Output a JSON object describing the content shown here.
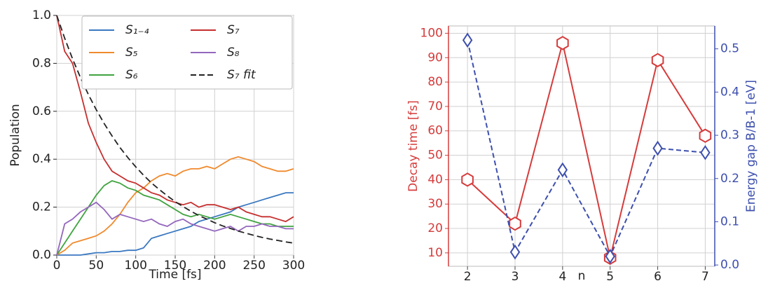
{
  "chart_data": [
    {
      "type": "line",
      "x_label": "Time [fs]",
      "y_label": "Population",
      "x": [
        0,
        10,
        20,
        30,
        40,
        50,
        60,
        70,
        80,
        90,
        100,
        110,
        120,
        130,
        140,
        150,
        160,
        170,
        180,
        190,
        200,
        210,
        220,
        230,
        240,
        250,
        260,
        270,
        280,
        290,
        300
      ],
      "series": [
        {
          "name": "S₁₋₄",
          "color": "#3a78c0",
          "values": [
            0,
            0,
            0,
            0,
            0.005,
            0.01,
            0.01,
            0.015,
            0.015,
            0.02,
            0.02,
            0.03,
            0.07,
            0.08,
            0.09,
            0.1,
            0.11,
            0.12,
            0.14,
            0.15,
            0.16,
            0.17,
            0.18,
            0.2,
            0.21,
            0.22,
            0.23,
            0.24,
            0.25,
            0.26,
            0.26
          ]
        },
        {
          "name": "S₅",
          "color": "#f08a2c",
          "values": [
            0,
            0.02,
            0.05,
            0.06,
            0.07,
            0.08,
            0.1,
            0.13,
            0.17,
            0.22,
            0.26,
            0.28,
            0.31,
            0.33,
            0.34,
            0.33,
            0.35,
            0.36,
            0.36,
            0.37,
            0.36,
            0.38,
            0.4,
            0.41,
            0.4,
            0.39,
            0.37,
            0.36,
            0.35,
            0.35,
            0.36
          ]
        },
        {
          "name": "S₆",
          "color": "#3fa33f",
          "values": [
            0,
            0.05,
            0.1,
            0.15,
            0.2,
            0.25,
            0.29,
            0.31,
            0.3,
            0.28,
            0.27,
            0.25,
            0.24,
            0.23,
            0.21,
            0.19,
            0.17,
            0.16,
            0.17,
            0.16,
            0.15,
            0.16,
            0.17,
            0.16,
            0.15,
            0.14,
            0.13,
            0.13,
            0.12,
            0.12,
            0.12
          ]
        },
        {
          "name": "S₇",
          "color": "#c62f2f",
          "values": [
            1.0,
            0.85,
            0.8,
            0.68,
            0.55,
            0.47,
            0.4,
            0.35,
            0.33,
            0.31,
            0.3,
            0.28,
            0.26,
            0.25,
            0.23,
            0.22,
            0.21,
            0.22,
            0.2,
            0.21,
            0.21,
            0.2,
            0.19,
            0.2,
            0.18,
            0.17,
            0.16,
            0.16,
            0.15,
            0.14,
            0.16
          ]
        },
        {
          "name": "S₈",
          "color": "#9467bd",
          "values": [
            0,
            0.13,
            0.15,
            0.18,
            0.2,
            0.22,
            0.19,
            0.15,
            0.17,
            0.16,
            0.15,
            0.14,
            0.15,
            0.13,
            0.12,
            0.14,
            0.15,
            0.13,
            0.12,
            0.11,
            0.1,
            0.11,
            0.12,
            0.1,
            0.12,
            0.12,
            0.13,
            0.12,
            0.12,
            0.11,
            0.11
          ]
        },
        {
          "name": "S₇ fit",
          "color": "#222222",
          "dash": true,
          "values": [
            1,
            0.905,
            0.819,
            0.741,
            0.67,
            0.607,
            0.549,
            0.497,
            0.449,
            0.407,
            0.368,
            0.333,
            0.301,
            0.273,
            0.247,
            0.223,
            0.202,
            0.183,
            0.165,
            0.15,
            0.135,
            0.122,
            0.111,
            0.1,
            0.091,
            0.082,
            0.074,
            0.067,
            0.061,
            0.055,
            0.05
          ]
        }
      ],
      "xlim": [
        0,
        300
      ],
      "xticks": [
        0,
        50,
        100,
        150,
        200,
        250,
        300
      ],
      "ylim": [
        0,
        1
      ],
      "yticks": [
        {
          "value": 0,
          "label": "0.0"
        },
        0.2,
        0.4,
        0.6,
        0.8,
        {
          "value": 1,
          "label": "1.0"
        }
      ],
      "grid": true,
      "legend": "upper right",
      "legend_columns": 2
    },
    {
      "type": "line",
      "x_label": "n",
      "y_label": "Decay time [fs]",
      "y2_label": "Energy gap B/B-1 [eV]",
      "x": [
        2,
        3,
        4,
        5,
        6,
        7
      ],
      "series": [
        {
          "color": "#d63b3b",
          "marker": "hexagon",
          "values": [
            40,
            22,
            96,
            8,
            89,
            58
          ]
        },
        {
          "color": "#3d4fae",
          "marker": "diamond",
          "dash": true,
          "axis": "y2",
          "values": [
            0.52,
            0.03,
            0.22,
            0.02,
            0.27,
            0.26
          ]
        }
      ],
      "xlim": [
        1.6,
        7.2
      ],
      "xticks": [
        2,
        3,
        4,
        5,
        6,
        7
      ],
      "ylim": [
        4.5,
        103
      ],
      "yticks": [
        10,
        20,
        30,
        40,
        50,
        60,
        70,
        80,
        90,
        100
      ],
      "y2lim": [
        -0.003,
        0.553
      ],
      "y2ticks": [
        {
          "value": 0,
          "label": "0.0"
        },
        0.1,
        0.2,
        0.3,
        0.4,
        0.5
      ],
      "grid": true,
      "axis_colors": true
    }
  ]
}
